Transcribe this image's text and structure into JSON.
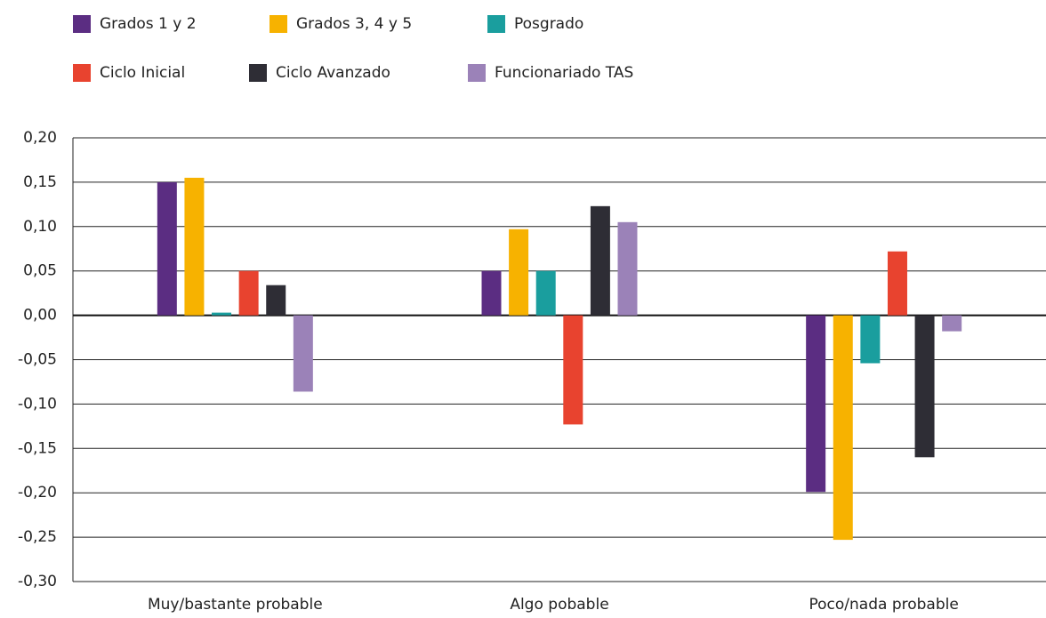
{
  "chart_data": {
    "type": "bar",
    "categories": [
      "Muy/bastante probable",
      "Algo pobable",
      "Poco/nada probable"
    ],
    "series": [
      {
        "name": "Grados 1 y 2",
        "color": "#5b2d82",
        "values": [
          0.15,
          0.05,
          -0.199
        ]
      },
      {
        "name": "Grados 3, 4 y 5",
        "color": "#f7b200",
        "values": [
          0.155,
          0.097,
          -0.253
        ]
      },
      {
        "name": "Posgrado",
        "color": "#1a9e9e",
        "values": [
          0.003,
          0.05,
          -0.054
        ]
      },
      {
        "name": "Ciclo Inicial",
        "color": "#e8432f",
        "values": [
          0.05,
          -0.123,
          0.072
        ]
      },
      {
        "name": "Ciclo Avanzado",
        "color": "#2e2d35",
        "values": [
          0.034,
          0.123,
          -0.16
        ]
      },
      {
        "name": "Funcionariado TAS",
        "color": "#9b82b8",
        "values": [
          -0.086,
          0.105,
          -0.018
        ]
      }
    ],
    "ylim": [
      -0.3,
      0.2
    ],
    "yticks": [
      {
        "value": 0.2,
        "label": "0,20"
      },
      {
        "value": 0.15,
        "label": "0,15"
      },
      {
        "value": 0.1,
        "label": "0,10"
      },
      {
        "value": 0.05,
        "label": "0,05"
      },
      {
        "value": 0,
        "label": "0,00"
      },
      {
        "value": -0.05,
        "label": "-0,05"
      },
      {
        "value": -0.1,
        "label": "-0,10"
      },
      {
        "value": -0.15,
        "label": "-0,15"
      },
      {
        "value": -0.2,
        "label": "-0,20"
      },
      {
        "value": -0.25,
        "label": "-0,25"
      },
      {
        "value": -0.3,
        "label": "-0,30"
      }
    ],
    "grid": true
  }
}
